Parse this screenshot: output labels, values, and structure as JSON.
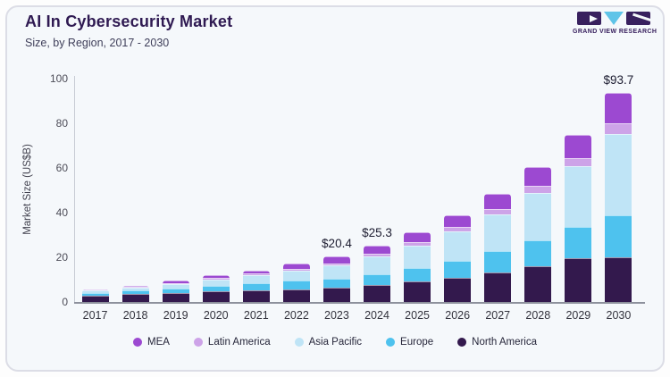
{
  "header": {
    "title": "AI In Cybersecurity Market",
    "subtitle": "Size, by Region, 2017 - 2030"
  },
  "logo": {
    "brand": "GRAND VIEW RESEARCH",
    "colors": {
      "dark_purple": "#38205e",
      "light_blue": "#5fc4e8"
    }
  },
  "chart_data": {
    "type": "bar",
    "stacked": true,
    "title": "AI In Cybersecurity Market",
    "subtitle": "Size, by Region, 2017 - 2030",
    "xlabel": "",
    "ylabel": "Market Size (US$B)",
    "ylim": [
      0,
      100
    ],
    "yticks": [
      0,
      20,
      40,
      60,
      80,
      100
    ],
    "grid": false,
    "legend_position": "bottom",
    "categories": [
      "2017",
      "2018",
      "2019",
      "2020",
      "2021",
      "2022",
      "2023",
      "2024",
      "2025",
      "2026",
      "2027",
      "2028",
      "2029",
      "2030"
    ],
    "series": [
      {
        "name": "North America",
        "color": "#33194d",
        "values": [
          3.0,
          3.6,
          4.2,
          4.9,
          5.4,
          5.6,
          6.3,
          7.6,
          9.1,
          11.0,
          13.3,
          16.2,
          19.5,
          20.0
        ]
      },
      {
        "name": "Europe",
        "color": "#4ec2ee",
        "values": [
          1.2,
          1.5,
          1.9,
          2.4,
          2.9,
          3.9,
          4.0,
          5.0,
          6.2,
          7.6,
          9.4,
          11.5,
          14.2,
          18.8
        ]
      },
      {
        "name": "Asia Pacific",
        "color": "#bfe4f6",
        "values": [
          1.1,
          1.5,
          2.1,
          2.9,
          3.7,
          4.5,
          6.0,
          7.7,
          9.9,
          12.9,
          16.5,
          21.2,
          27.0,
          36.3
        ]
      },
      {
        "name": "Latin America",
        "color": "#cda3e8",
        "values": [
          0.2,
          0.3,
          0.4,
          0.5,
          0.7,
          0.8,
          1.1,
          1.3,
          1.6,
          2.0,
          2.5,
          3.1,
          3.8,
          4.9
        ]
      },
      {
        "name": "MEA",
        "color": "#9c49d1",
        "values": [
          0.3,
          0.5,
          0.9,
          1.3,
          1.5,
          2.3,
          3.0,
          3.7,
          4.4,
          5.5,
          6.8,
          8.5,
          10.5,
          13.7
        ]
      }
    ],
    "legend_order": [
      "MEA",
      "Latin America",
      "Asia Pacific",
      "Europe",
      "North America"
    ],
    "annotations": [
      {
        "category": "2023",
        "text": "$20.4"
      },
      {
        "category": "2024",
        "text": "$25.3"
      },
      {
        "category": "2030",
        "text": "$93.7"
      }
    ]
  }
}
